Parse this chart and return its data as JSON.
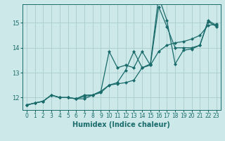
{
  "title": "",
  "xlabel": "Humidex (Indice chaleur)",
  "bg_color": "#cce8e8",
  "grid_color": "#aacccc",
  "line_color": "#1a6b6b",
  "xlim": [
    -0.5,
    23.5
  ],
  "ylim": [
    11.5,
    15.75
  ],
  "yticks": [
    12,
    13,
    14,
    15
  ],
  "xticks": [
    0,
    1,
    2,
    3,
    4,
    5,
    6,
    7,
    8,
    9,
    10,
    11,
    12,
    13,
    14,
    15,
    16,
    17,
    18,
    19,
    20,
    21,
    22,
    23
  ],
  "line1_x": [
    0,
    1,
    2,
    3,
    4,
    5,
    6,
    7,
    8,
    9,
    10,
    11,
    12,
    13,
    14,
    15,
    16,
    17,
    18,
    19,
    20,
    21,
    22,
    23
  ],
  "line1_y": [
    11.7,
    11.78,
    11.85,
    12.1,
    12.0,
    12.0,
    11.95,
    12.05,
    12.1,
    12.25,
    12.5,
    12.6,
    13.1,
    13.85,
    13.2,
    13.35,
    16.05,
    15.1,
    13.35,
    13.9,
    13.95,
    14.1,
    15.1,
    14.9
  ],
  "line2_x": [
    0,
    1,
    2,
    3,
    4,
    5,
    6,
    7,
    8,
    9,
    10,
    11,
    12,
    13,
    14,
    15,
    16,
    17,
    18,
    19,
    20,
    21,
    22,
    23
  ],
  "line2_y": [
    11.7,
    11.78,
    11.85,
    12.1,
    12.0,
    12.0,
    11.95,
    11.95,
    12.1,
    12.25,
    13.85,
    13.2,
    13.3,
    13.2,
    13.85,
    13.3,
    15.65,
    14.85,
    14.0,
    14.0,
    14.0,
    14.1,
    15.05,
    14.85
  ],
  "line3_x": [
    0,
    1,
    2,
    3,
    4,
    5,
    6,
    7,
    8,
    9,
    10,
    11,
    12,
    13,
    14,
    15,
    16,
    17,
    18,
    19,
    20,
    21,
    22,
    23
  ],
  "line3_y": [
    11.7,
    11.78,
    11.85,
    12.1,
    12.0,
    12.0,
    11.95,
    12.1,
    12.1,
    12.2,
    12.5,
    12.55,
    12.6,
    12.7,
    13.2,
    13.3,
    13.85,
    14.1,
    14.2,
    14.25,
    14.35,
    14.5,
    14.9,
    14.95
  ],
  "marker": "D",
  "markersize": 2.0,
  "linewidth": 0.9,
  "xlabel_fontsize": 7,
  "tick_fontsize": 5.5
}
